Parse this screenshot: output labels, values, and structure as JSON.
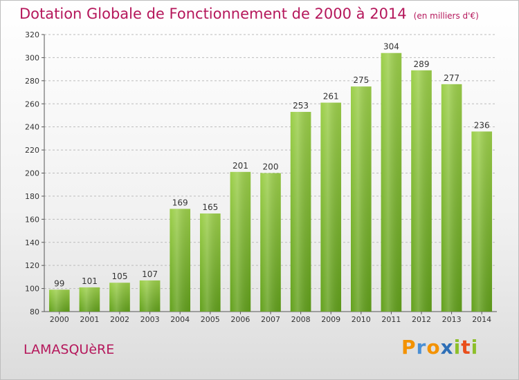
{
  "header": {
    "title": "Dotation Globale de Fonctionnement de 2000 à 2014",
    "subtitle": "(en milliers d'€)"
  },
  "footer": {
    "commune": "LAMASQUèRE",
    "brand": "Proxiti",
    "brand_letters": [
      {
        "ch": "P",
        "color": "#f39200"
      },
      {
        "ch": "r",
        "color": "#4a8fd4"
      },
      {
        "ch": "o",
        "color": "#f39200"
      },
      {
        "ch": "x",
        "color": "#2e6fb7"
      },
      {
        "ch": "i",
        "color": "#8dbf2a"
      },
      {
        "ch": "t",
        "color": "#e94e1b"
      },
      {
        "ch": "i",
        "color": "#8dbf2a"
      }
    ]
  },
  "colors": {
    "bar_top": "#9ccf4a",
    "bar_bottom": "#62a01c",
    "accent": "#b5175b",
    "grid": "#bbbbbb"
  },
  "chart_data": {
    "type": "bar",
    "title": "Dotation Globale de Fonctionnement de 2000 à 2014",
    "subtitle": "(en milliers d'€)",
    "xlabel": "",
    "ylabel": "",
    "categories": [
      "2000",
      "2001",
      "2002",
      "2003",
      "2004",
      "2005",
      "2006",
      "2007",
      "2008",
      "2009",
      "2010",
      "2011",
      "2012",
      "2013",
      "2014"
    ],
    "values": [
      99,
      101,
      105,
      107,
      169,
      165,
      201,
      200,
      253,
      261,
      275,
      304,
      289,
      277,
      236
    ],
    "ylim": [
      80,
      320
    ],
    "yticks": [
      80,
      100,
      120,
      140,
      160,
      180,
      200,
      220,
      240,
      260,
      280,
      300,
      320
    ],
    "grid": "horizontal-dashed",
    "legend": "none"
  }
}
